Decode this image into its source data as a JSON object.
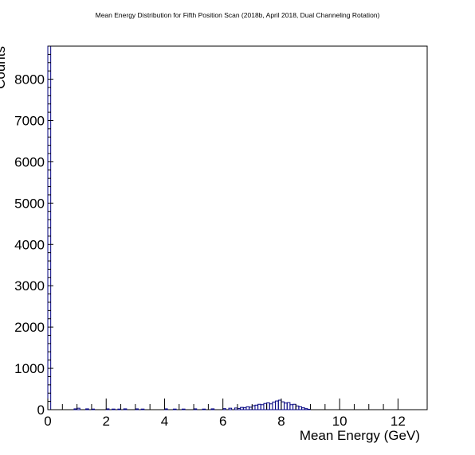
{
  "chart_data": {
    "type": "bar",
    "title": "Mean Energy Distribution for Fifth Position Scan (2018b, April 2018, Dual Channeling Rotation)",
    "xlabel": "Mean Energy (GeV)",
    "ylabel": "Counts",
    "xlim": [
      0,
      13
    ],
    "ylim": [
      0,
      8800
    ],
    "xticks": [
      "0",
      "2",
      "4",
      "6",
      "8",
      "10",
      "12"
    ],
    "yticks": [
      "0",
      "1000",
      "2000",
      "3000",
      "4000",
      "5000",
      "6000",
      "7000",
      "8000"
    ],
    "bin_width": 0.1,
    "x": [
      0.0,
      0.9,
      1.0,
      1.3,
      1.5,
      2.0,
      2.2,
      2.4,
      2.6,
      3.0,
      3.2,
      4.0,
      4.3,
      4.6,
      5.0,
      5.3,
      5.6,
      6.0,
      6.2,
      6.4,
      6.5,
      6.6,
      6.7,
      6.8,
      6.9,
      7.0,
      7.1,
      7.2,
      7.3,
      7.4,
      7.5,
      7.6,
      7.7,
      7.8,
      7.9,
      8.0,
      8.1,
      8.2,
      8.3,
      8.4,
      8.5,
      8.6,
      8.7,
      8.8,
      8.9
    ],
    "values": [
      8800,
      20,
      35,
      20,
      15,
      20,
      15,
      15,
      20,
      20,
      15,
      20,
      15,
      15,
      20,
      15,
      20,
      25,
      35,
      40,
      30,
      55,
      45,
      70,
      60,
      95,
      110,
      130,
      120,
      150,
      165,
      140,
      185,
      210,
      230,
      190,
      160,
      170,
      120,
      130,
      90,
      70,
      45,
      25,
      10
    ],
    "grid": false,
    "legend": "none",
    "colors": {
      "line": "#000080",
      "axis": "#000000",
      "background": "#ffffff"
    }
  }
}
